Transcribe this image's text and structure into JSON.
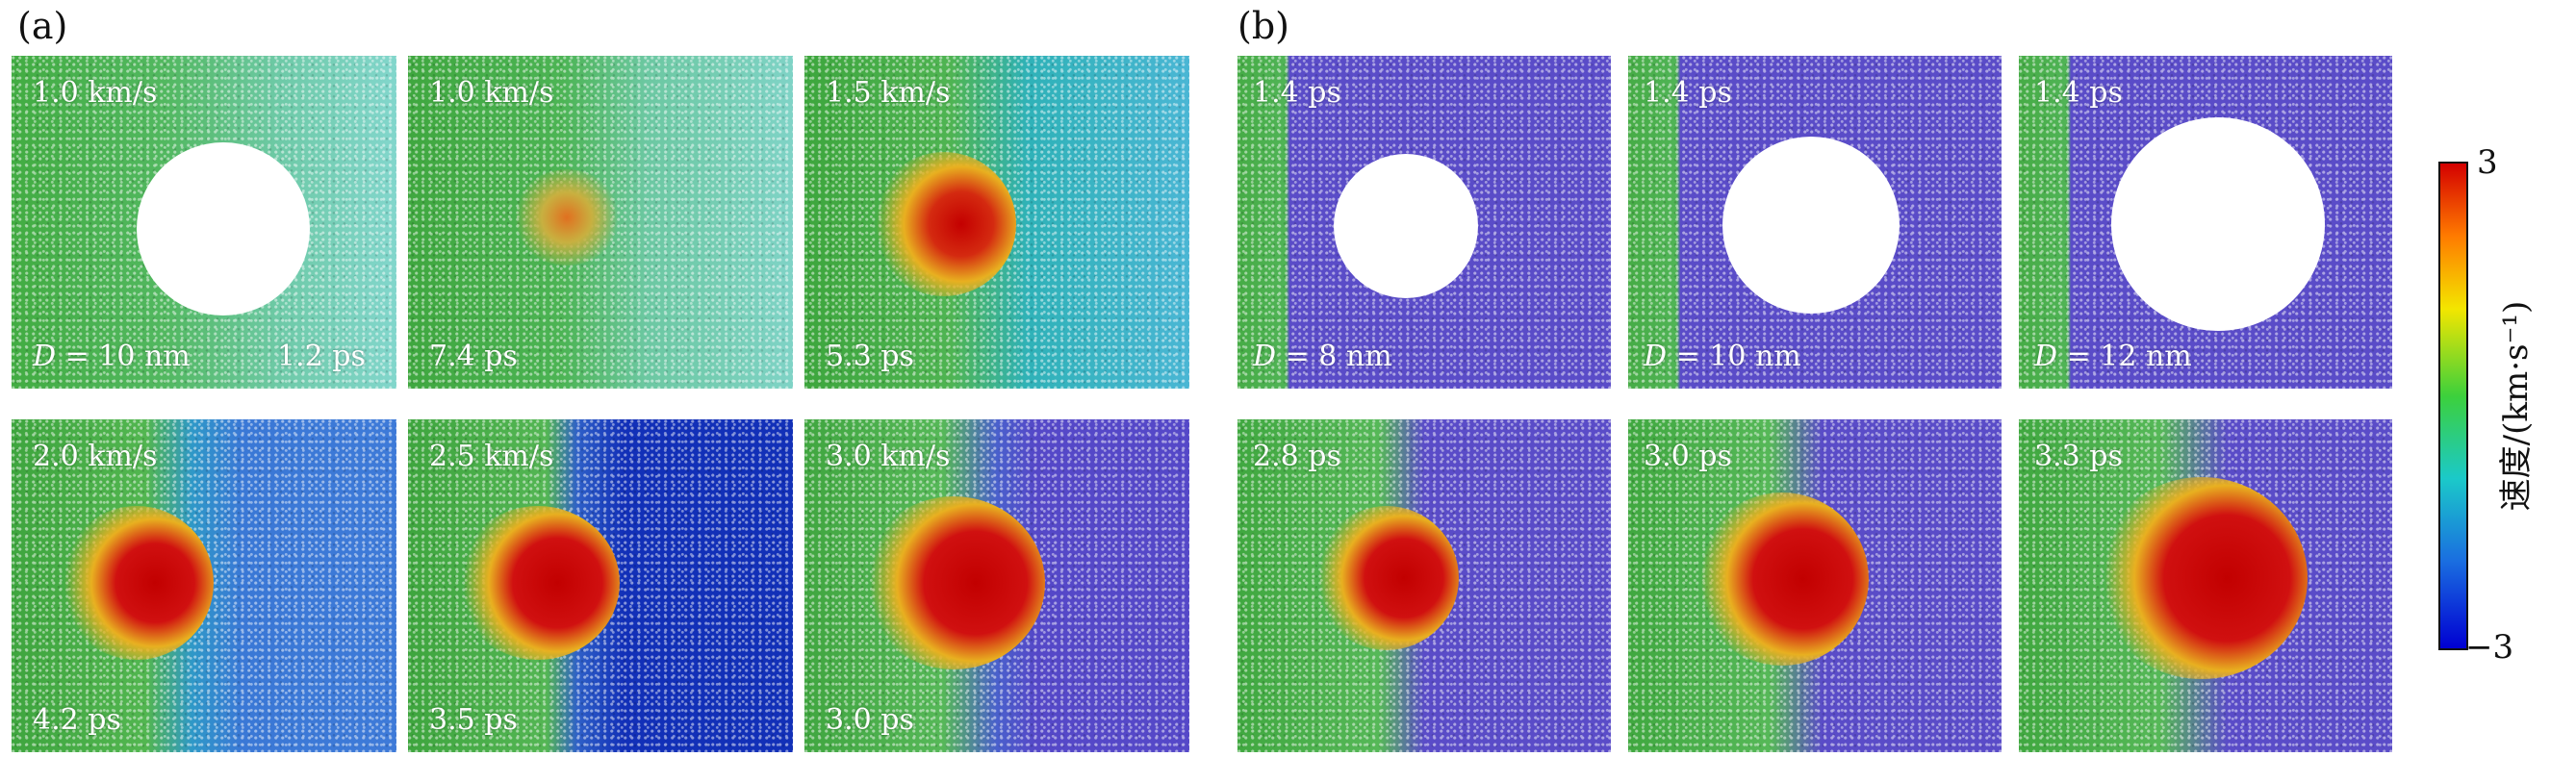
{
  "panels": [
    {
      "label": "(a)"
    },
    {
      "label": "(b)"
    }
  ],
  "frames_a": [
    {
      "top": "1.0 km/s",
      "bottom": "1.2 ps",
      "d_label": "D",
      "d_value": " = 10 nm"
    },
    {
      "top": "1.0 km/s",
      "bottom": "7.4 ps"
    },
    {
      "top": "1.5 km/s",
      "bottom": "5.3 ps"
    },
    {
      "top": "2.0 km/s",
      "bottom": "4.2 ps"
    },
    {
      "top": "2.5 km/s",
      "bottom": "3.5 ps"
    },
    {
      "top": "3.0 km/s",
      "bottom": "3.0 ps"
    }
  ],
  "frames_b": [
    {
      "top": "1.4 ps",
      "d_label": "D",
      "d_value": " = 8 nm"
    },
    {
      "top": "1.4 ps",
      "d_label": "D",
      "d_value": " = 10 nm"
    },
    {
      "top": "1.4 ps",
      "d_label": "D",
      "d_value": " = 12 nm"
    },
    {
      "top": "2.8 ps"
    },
    {
      "top": "3.0 ps"
    },
    {
      "top": "3.3 ps"
    }
  ],
  "colorbar": {
    "max_label": "3",
    "min_label": "−3",
    "title": "速度/(km·s⁻¹)",
    "colors": [
      "#d40000",
      "#ff7b00",
      "#f3e600",
      "#3cd03c",
      "#1bc9c9",
      "#1a6ee0",
      "#0000d2"
    ]
  }
}
